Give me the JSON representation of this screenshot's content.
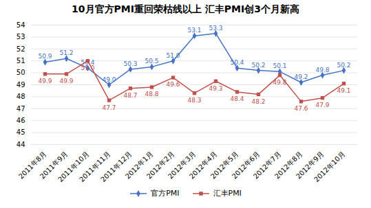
{
  "chart_data": {
    "type": "line",
    "title": "10月官方PMI重回荣枯线以上 汇丰PMI创3个月新高",
    "categories": [
      "2011年8月",
      "2011年9月",
      "2011年10月",
      "2011年11月",
      "2011年12月",
      "2012年1月",
      "2012年2月",
      "2012年3月",
      "2012年4月",
      "2012年5月",
      "2012年6月",
      "2012年7月",
      "2012年8月",
      "2012年9月",
      "2012年10月"
    ],
    "series": [
      {
        "name": "官方PMI",
        "color": "#4472C4",
        "marker": "diamond",
        "values": [
          50.9,
          51.2,
          50.4,
          49.0,
          50.3,
          50.5,
          51.0,
          53.1,
          53.3,
          50.4,
          50.2,
          50.1,
          49.2,
          49.8,
          50.2
        ],
        "value_labels": [
          "50.9",
          "51.2",
          "50.4",
          "49.0",
          "50.3",
          "50.5",
          "51.0",
          "53.1",
          "53.3",
          "50.4",
          "50.2",
          "50.1",
          "49.2",
          "49.8",
          "50.2"
        ]
      },
      {
        "name": "汇丰PMI",
        "color": "#C0504D",
        "marker": "square",
        "values": [
          49.9,
          49.9,
          51.0,
          47.7,
          48.7,
          48.8,
          49.6,
          48.3,
          49.3,
          48.4,
          48.2,
          49.8,
          47.6,
          47.9,
          49.1
        ],
        "value_labels": [
          "49.9",
          "49.9",
          "51.0",
          "47.7",
          "48.7",
          "48.8",
          "49.6",
          "48.3",
          "49.3",
          "48.4",
          "48.2",
          "49.8",
          "47.6",
          "47.9",
          "49.1"
        ]
      }
    ],
    "ylim": [
      44,
      54
    ],
    "yticks": [
      44,
      45,
      46,
      47,
      48,
      49,
      50,
      51,
      52,
      53,
      54
    ],
    "grid": true,
    "data_labels": true,
    "legend": "bottom"
  }
}
